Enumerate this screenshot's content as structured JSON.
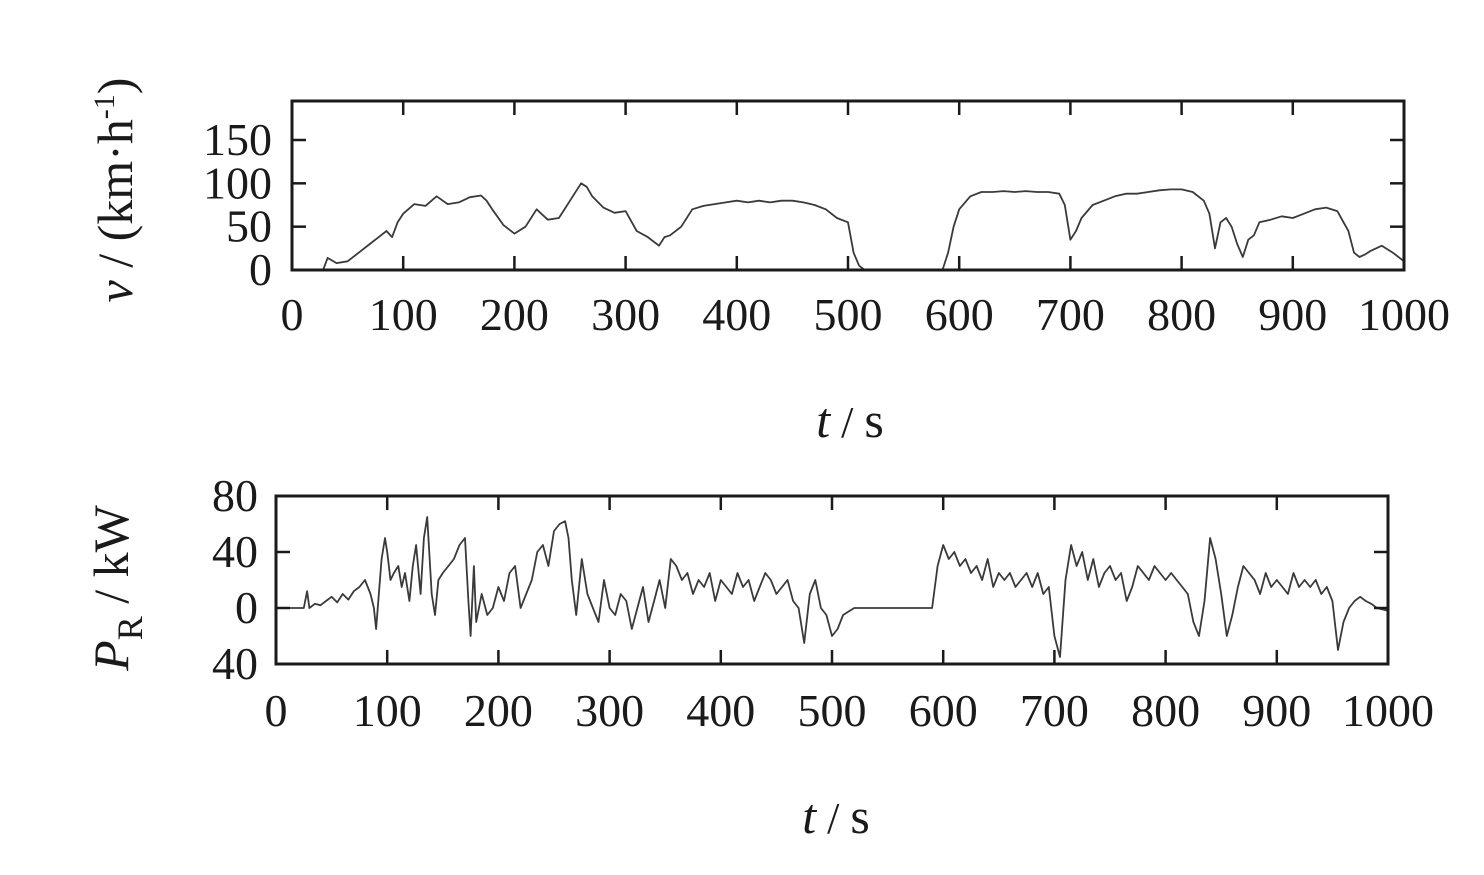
{
  "chart_data": [
    {
      "type": "line",
      "ylabel_parts": [
        "v",
        " / (km·h",
        "-1",
        ")"
      ],
      "xlabel_parts": [
        "t",
        " / ",
        "s"
      ],
      "xlim": [
        0,
        1000
      ],
      "ylim": [
        0,
        195
      ],
      "xticks": [
        0,
        100,
        200,
        300,
        400,
        500,
        600,
        700,
        800,
        900,
        1000
      ],
      "xtick_labels": [
        "0",
        "100",
        "200",
        "300",
        "400",
        "500",
        "600",
        "700",
        "800",
        "900",
        "1000"
      ],
      "yticks": [
        0,
        50,
        100,
        150
      ],
      "ytick_labels": [
        "0",
        "50",
        "100",
        "150"
      ],
      "grid": false,
      "series": [
        {
          "line_color": "#3a3a3a",
          "x": [
            0,
            28,
            32,
            40,
            50,
            60,
            70,
            80,
            85,
            90,
            95,
            100,
            110,
            120,
            130,
            140,
            150,
            160,
            170,
            175,
            180,
            190,
            200,
            210,
            220,
            230,
            240,
            250,
            260,
            265,
            270,
            280,
            290,
            300,
            310,
            320,
            330,
            335,
            340,
            350,
            360,
            370,
            380,
            390,
            400,
            410,
            420,
            430,
            440,
            450,
            460,
            470,
            480,
            490,
            500,
            505,
            510,
            515,
            520,
            530,
            540,
            550,
            560,
            570,
            580,
            585,
            590,
            595,
            600,
            610,
            620,
            630,
            640,
            650,
            660,
            670,
            680,
            690,
            695,
            700,
            705,
            710,
            720,
            730,
            740,
            750,
            760,
            770,
            780,
            790,
            800,
            810,
            820,
            825,
            830,
            835,
            840,
            845,
            850,
            855,
            860,
            865,
            870,
            880,
            890,
            900,
            910,
            920,
            930,
            940,
            950,
            955,
            960,
            965,
            970,
            980,
            990,
            1000
          ],
          "y": [
            0,
            0,
            14,
            8,
            10,
            20,
            30,
            40,
            45,
            38,
            55,
            65,
            76,
            74,
            85,
            76,
            78,
            84,
            86,
            80,
            70,
            52,
            42,
            50,
            70,
            58,
            60,
            80,
            100,
            96,
            85,
            72,
            66,
            68,
            45,
            38,
            28,
            38,
            40,
            50,
            70,
            74,
            76,
            78,
            80,
            78,
            80,
            78,
            80,
            80,
            78,
            75,
            70,
            60,
            55,
            20,
            5,
            0,
            0,
            0,
            0,
            0,
            0,
            0,
            0,
            0,
            20,
            50,
            70,
            85,
            90,
            90,
            91,
            90,
            91,
            90,
            90,
            88,
            75,
            35,
            45,
            60,
            75,
            80,
            85,
            88,
            88,
            90,
            92,
            93,
            93,
            90,
            80,
            65,
            25,
            55,
            60,
            50,
            30,
            15,
            35,
            40,
            55,
            58,
            62,
            60,
            65,
            70,
            72,
            68,
            45,
            20,
            15,
            18,
            22,
            28,
            20,
            10
          ]
        }
      ]
    },
    {
      "type": "line",
      "ylabel_parts": [
        "P",
        "R",
        " / kW"
      ],
      "xlabel_parts": [
        "t",
        " / ",
        "s"
      ],
      "xlim": [
        0,
        1000
      ],
      "ylim": [
        -40,
        80
      ],
      "xticks": [
        0,
        100,
        200,
        300,
        400,
        500,
        600,
        700,
        800,
        900,
        1000
      ],
      "xtick_labels": [
        "0",
        "100",
        "200",
        "300",
        "400",
        "500",
        "600",
        "700",
        "800",
        "900",
        "1000"
      ],
      "yticks": [
        -40,
        0,
        40,
        80
      ],
      "ytick_labels": [
        "40",
        "0",
        "40",
        "80"
      ],
      "grid": false,
      "series": [
        {
          "line_color": "#3a3a3a",
          "x": [
            0,
            25,
            28,
            30,
            35,
            40,
            45,
            50,
            55,
            60,
            65,
            70,
            75,
            80,
            85,
            88,
            90,
            93,
            95,
            98,
            100,
            103,
            106,
            110,
            113,
            116,
            120,
            123,
            126,
            130,
            133,
            136,
            140,
            143,
            146,
            150,
            155,
            160,
            165,
            170,
            173,
            175,
            178,
            180,
            185,
            190,
            195,
            200,
            205,
            210,
            215,
            220,
            225,
            230,
            235,
            240,
            245,
            250,
            255,
            260,
            263,
            266,
            270,
            275,
            280,
            285,
            290,
            295,
            300,
            305,
            310,
            315,
            320,
            325,
            330,
            335,
            340,
            345,
            350,
            355,
            360,
            365,
            370,
            375,
            380,
            385,
            390,
            395,
            400,
            405,
            410,
            415,
            420,
            425,
            430,
            435,
            440,
            445,
            450,
            455,
            460,
            465,
            470,
            475,
            480,
            485,
            490,
            495,
            500,
            505,
            510,
            520,
            540,
            560,
            580,
            590,
            595,
            600,
            605,
            610,
            615,
            620,
            625,
            630,
            635,
            640,
            645,
            650,
            655,
            660,
            665,
            670,
            675,
            680,
            685,
            690,
            695,
            700,
            705,
            710,
            715,
            720,
            725,
            730,
            735,
            740,
            745,
            750,
            755,
            760,
            765,
            770,
            775,
            780,
            785,
            790,
            795,
            800,
            805,
            810,
            815,
            820,
            825,
            830,
            835,
            840,
            845,
            850,
            855,
            860,
            865,
            870,
            875,
            880,
            885,
            890,
            895,
            900,
            905,
            910,
            915,
            920,
            925,
            930,
            935,
            940,
            945,
            950,
            955,
            960,
            965,
            970,
            975,
            980,
            985,
            990,
            1000
          ],
          "y": [
            0,
            0,
            12,
            0,
            3,
            2,
            5,
            8,
            4,
            10,
            6,
            12,
            15,
            20,
            10,
            0,
            -15,
            15,
            35,
            50,
            40,
            20,
            25,
            30,
            15,
            25,
            5,
            30,
            45,
            10,
            50,
            65,
            10,
            -5,
            20,
            25,
            30,
            35,
            45,
            50,
            5,
            -20,
            30,
            -10,
            10,
            -5,
            0,
            15,
            5,
            25,
            30,
            0,
            10,
            20,
            40,
            45,
            30,
            55,
            60,
            62,
            50,
            20,
            -5,
            35,
            10,
            0,
            -10,
            20,
            0,
            -5,
            10,
            5,
            -15,
            0,
            15,
            -10,
            5,
            20,
            0,
            35,
            30,
            20,
            25,
            10,
            20,
            15,
            25,
            5,
            20,
            15,
            10,
            25,
            15,
            20,
            5,
            15,
            25,
            20,
            10,
            15,
            20,
            5,
            0,
            -25,
            10,
            20,
            0,
            -5,
            -20,
            -15,
            -5,
            0,
            0,
            0,
            0,
            0,
            30,
            45,
            35,
            40,
            30,
            35,
            25,
            30,
            20,
            35,
            15,
            25,
            20,
            25,
            15,
            20,
            25,
            15,
            25,
            10,
            15,
            -20,
            -35,
            20,
            45,
            30,
            40,
            20,
            35,
            15,
            25,
            30,
            20,
            25,
            5,
            15,
            30,
            25,
            20,
            30,
            25,
            20,
            25,
            20,
            15,
            10,
            -10,
            -20,
            5,
            50,
            35,
            10,
            -20,
            -5,
            15,
            30,
            25,
            20,
            10,
            25,
            15,
            20,
            15,
            10,
            25,
            15,
            20,
            15,
            20,
            10,
            15,
            5,
            -30,
            -10,
            0,
            5,
            8,
            5,
            3,
            0,
            -2
          ]
        }
      ]
    }
  ]
}
